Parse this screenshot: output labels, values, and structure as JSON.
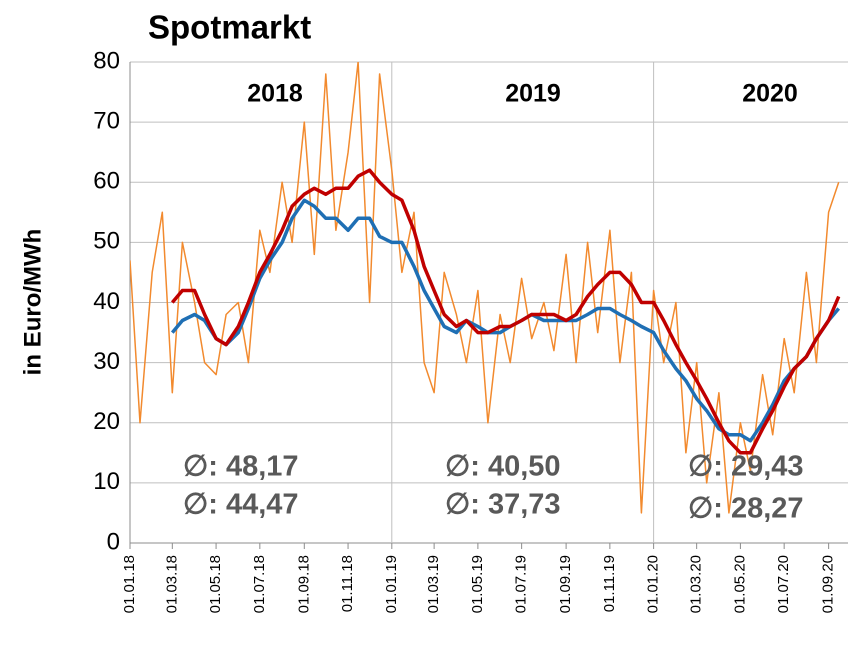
{
  "chart_data": {
    "type": "line",
    "title": "Spotmarkt",
    "y_label": "in Euro/MWh",
    "x": [
      "01.01.18",
      "15.01.18",
      "01.02.18",
      "15.02.18",
      "01.03.18",
      "15.03.18",
      "01.04.18",
      "15.04.18",
      "01.05.18",
      "15.05.18",
      "01.06.18",
      "15.06.18",
      "01.07.18",
      "15.07.18",
      "01.08.18",
      "15.08.18",
      "01.09.18",
      "15.09.18",
      "01.10.18",
      "15.10.18",
      "01.11.18",
      "15.11.18",
      "01.12.18",
      "15.12.18",
      "01.01.19",
      "15.01.19",
      "01.02.19",
      "15.02.19",
      "01.03.19",
      "15.03.19",
      "01.04.19",
      "15.04.19",
      "01.05.19",
      "15.05.19",
      "01.06.19",
      "15.06.19",
      "01.07.19",
      "15.07.19",
      "01.08.19",
      "15.08.19",
      "01.09.19",
      "15.09.19",
      "01.10.19",
      "15.10.19",
      "01.11.19",
      "15.11.19",
      "01.12.19",
      "15.12.19",
      "01.01.20",
      "15.01.20",
      "01.02.20",
      "15.02.20",
      "01.03.20",
      "15.03.20",
      "01.04.20",
      "15.04.20",
      "01.05.20",
      "15.05.20",
      "01.06.20",
      "15.06.20",
      "01.07.20",
      "15.07.20",
      "01.08.20",
      "15.08.20",
      "01.09.20",
      "15.09.20"
    ],
    "series": [
      {
        "color": "#f28a2e",
        "width": 1.5,
        "values": [
          47,
          20,
          45,
          55,
          25,
          50,
          40,
          30,
          28,
          38,
          40,
          30,
          52,
          45,
          60,
          50,
          70,
          48,
          78,
          52,
          65,
          80,
          40,
          78,
          62,
          45,
          55,
          30,
          25,
          45,
          38,
          30,
          42,
          20,
          38,
          30,
          44,
          34,
          40,
          32,
          48,
          30,
          50,
          35,
          52,
          30,
          45,
          5,
          42,
          30,
          40,
          15,
          30,
          10,
          25,
          5,
          20,
          12,
          28,
          18,
          34,
          25,
          45,
          30,
          55,
          60
        ]
      },
      {
        "color": "#1f6fb4",
        "width": 3.5,
        "values": [
          null,
          null,
          null,
          null,
          35,
          37,
          38,
          37,
          34,
          33,
          35,
          39,
          44,
          47,
          50,
          54,
          57,
          56,
          54,
          54,
          52,
          54,
          54,
          51,
          50,
          50,
          46,
          42,
          39,
          36,
          35,
          37,
          36,
          35,
          35,
          36,
          37,
          38,
          37,
          37,
          37,
          37,
          38,
          39,
          39,
          38,
          37,
          36,
          35,
          32,
          29,
          27,
          24,
          22,
          19,
          18,
          18,
          17,
          20,
          23,
          27,
          29,
          31,
          34,
          37,
          39
        ]
      },
      {
        "color": "#c00000",
        "width": 3.5,
        "values": [
          null,
          null,
          null,
          null,
          40,
          42,
          42,
          38,
          34,
          33,
          36,
          40,
          45,
          48,
          52,
          56,
          58,
          59,
          58,
          59,
          59,
          61,
          62,
          60,
          58,
          57,
          52,
          46,
          42,
          38,
          36,
          37,
          35,
          35,
          36,
          36,
          37,
          38,
          38,
          38,
          37,
          38,
          41,
          43,
          45,
          45,
          43,
          40,
          40,
          37,
          33,
          30,
          27,
          24,
          20,
          17,
          15,
          15,
          19,
          22,
          26,
          29,
          31,
          34,
          37,
          41
        ]
      }
    ],
    "xlim": [
      "01.01.18",
      "28.09.20"
    ],
    "xticks": [
      "01.01.18",
      "01.03.18",
      "01.05.18",
      "01.07.18",
      "01.09.18",
      "01.11.18",
      "01.01.19",
      "01.03.19",
      "01.05.19",
      "01.07.19",
      "01.09.19",
      "01.11.19",
      "01.01.20",
      "01.03.20",
      "01.05.20",
      "01.07.20",
      "01.09.20"
    ],
    "ylim": [
      0,
      80
    ],
    "yticks": [
      0,
      10,
      20,
      30,
      40,
      50,
      60,
      70,
      80
    ],
    "grid": true,
    "year_lines": [
      "01.01.19",
      "01.01.20"
    ],
    "year_labels": [
      "2018",
      "2019",
      "2020"
    ],
    "annotations": [
      "∅: 48,17",
      "∅: 44,47",
      "∅: 40,50",
      "∅: 37,73",
      "∅: 29,43",
      "∅: 28,27"
    ]
  }
}
